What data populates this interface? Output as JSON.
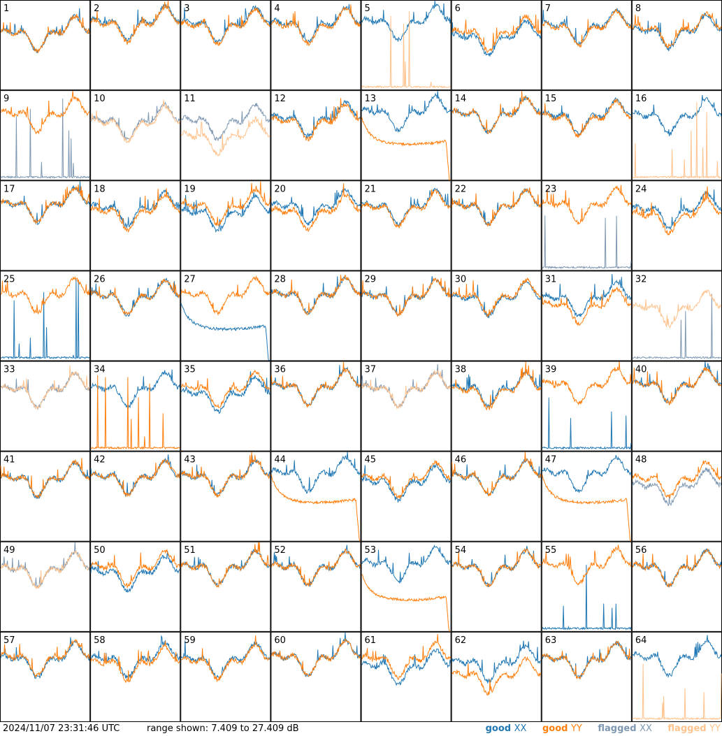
{
  "colors": {
    "good_xx": "#1f77b4",
    "good_yy": "#ff7f0e",
    "flagged_xx": "#7f98b2",
    "flagged_yy": "#ffc38e",
    "border": "#000000"
  },
  "footer": {
    "timestamp": "2024/11/07 23:31:46 UTC",
    "range": "range shown: 7.409 to 27.409 dB"
  },
  "legend": {
    "good": "good",
    "flagged": "flagged",
    "xx": "XX",
    "yy": "YY"
  },
  "chart_data": {
    "type": "line",
    "layout": "grid 8x8 of per-antenna spectra",
    "ylim": [
      7.409,
      27.409
    ],
    "yunits": "dB",
    "panels": [
      {
        "label": "1",
        "xx": "good",
        "yy": "good",
        "xx_level": 0.6,
        "yy_level": 0.6,
        "xx_shape": "gen",
        "yy_shape": "gen"
      },
      {
        "label": "2",
        "xx": "good",
        "yy": "good",
        "xx_level": 0.72,
        "yy_level": 0.7,
        "xx_shape": "gen",
        "yy_shape": "gen"
      },
      {
        "label": "3",
        "xx": "good",
        "yy": "good",
        "xx_level": 0.7,
        "yy_level": 0.68,
        "xx_shape": "gen",
        "yy_shape": "gen"
      },
      {
        "label": "4",
        "xx": "good",
        "yy": "good",
        "xx_level": 0.7,
        "yy_level": 0.68,
        "xx_shape": "gen",
        "yy_shape": "gen"
      },
      {
        "label": "5",
        "xx": "good",
        "yy": "flagged",
        "xx_level": 0.72,
        "yy_level": 0.0,
        "xx_shape": "gen",
        "yy_shape": "spikes"
      },
      {
        "label": "6",
        "xx": "good",
        "yy": "good",
        "xx_level": 0.55,
        "yy_level": 0.6,
        "xx_shape": "gen",
        "yy_shape": "gen"
      },
      {
        "label": "7",
        "xx": "good",
        "yy": "good",
        "xx_level": 0.68,
        "yy_level": 0.66,
        "xx_shape": "gen",
        "yy_shape": "gen"
      },
      {
        "label": "8",
        "xx": "good",
        "yy": "good",
        "xx_level": 0.62,
        "yy_level": 0.64,
        "xx_shape": "gen",
        "yy_shape": "gen"
      },
      {
        "label": "9",
        "xx": "flagged",
        "yy": "good",
        "xx_level": 0.0,
        "yy_level": 0.7,
        "xx_shape": "spikes",
        "yy_shape": "gen"
      },
      {
        "label": "10",
        "xx": "flagged",
        "yy": "flagged",
        "xx_level": 0.62,
        "yy_level": 0.6,
        "xx_shape": "gen",
        "yy_shape": "gen"
      },
      {
        "label": "11",
        "xx": "flagged",
        "yy": "flagged",
        "xx_level": 0.62,
        "yy_level": 0.45,
        "xx_shape": "gen",
        "yy_shape": "gen"
      },
      {
        "label": "12",
        "xx": "good",
        "yy": "good",
        "xx_level": 0.65,
        "yy_level": 0.62,
        "xx_shape": "gen",
        "yy_shape": "gen"
      },
      {
        "label": "13",
        "xx": "good",
        "yy": "good",
        "xx_level": 0.72,
        "yy_level": 0.45,
        "xx_shape": "gen",
        "yy_shape": "decay"
      },
      {
        "label": "14",
        "xx": "good",
        "yy": "good",
        "xx_level": 0.7,
        "yy_level": 0.7,
        "xx_shape": "gen",
        "yy_shape": "gen"
      },
      {
        "label": "15",
        "xx": "good",
        "yy": "good",
        "xx_level": 0.68,
        "yy_level": 0.66,
        "xx_shape": "gen",
        "yy_shape": "gen"
      },
      {
        "label": "16",
        "xx": "good",
        "yy": "flagged",
        "xx_level": 0.68,
        "yy_level": 0.0,
        "xx_shape": "gen",
        "yy_shape": "spikes"
      },
      {
        "label": "17",
        "xx": "good",
        "yy": "good",
        "xx_level": 0.7,
        "yy_level": 0.7,
        "xx_shape": "gen",
        "yy_shape": "gen"
      },
      {
        "label": "18",
        "xx": "good",
        "yy": "good",
        "xx_level": 0.66,
        "yy_level": 0.62,
        "xx_shape": "gen",
        "yy_shape": "gen"
      },
      {
        "label": "19",
        "xx": "good",
        "yy": "good",
        "xx_level": 0.6,
        "yy_level": 0.68,
        "xx_shape": "gen",
        "yy_shape": "gen"
      },
      {
        "label": "20",
        "xx": "good",
        "yy": "good",
        "xx_level": 0.68,
        "yy_level": 0.62,
        "xx_shape": "gen",
        "yy_shape": "gen"
      },
      {
        "label": "21",
        "xx": "good",
        "yy": "good",
        "xx_level": 0.68,
        "yy_level": 0.66,
        "xx_shape": "gen",
        "yy_shape": "gen"
      },
      {
        "label": "22",
        "xx": "good",
        "yy": "good",
        "xx_level": 0.68,
        "yy_level": 0.68,
        "xx_shape": "gen",
        "yy_shape": "gen"
      },
      {
        "label": "23",
        "xx": "flagged",
        "yy": "good",
        "xx_level": 0.0,
        "yy_level": 0.7,
        "xx_shape": "spikes",
        "yy_shape": "gen"
      },
      {
        "label": "24",
        "xx": "good",
        "yy": "good",
        "xx_level": 0.64,
        "yy_level": 0.58,
        "xx_shape": "gen",
        "yy_shape": "gen"
      },
      {
        "label": "25",
        "xx": "good",
        "yy": "good",
        "xx_level": 0.0,
        "yy_level": 0.7,
        "xx_shape": "spikes",
        "yy_shape": "gen"
      },
      {
        "label": "26",
        "xx": "good",
        "yy": "good",
        "xx_level": 0.68,
        "yy_level": 0.68,
        "xx_shape": "gen",
        "yy_shape": "gen"
      },
      {
        "label": "27",
        "xx": "good",
        "yy": "good",
        "xx_level": 0.4,
        "yy_level": 0.7,
        "xx_shape": "decay",
        "yy_shape": "gen"
      },
      {
        "label": "28",
        "xx": "good",
        "yy": "good",
        "xx_level": 0.7,
        "yy_level": 0.7,
        "xx_shape": "gen",
        "yy_shape": "gen"
      },
      {
        "label": "29",
        "xx": "good",
        "yy": "good",
        "xx_level": 0.68,
        "yy_level": 0.68,
        "xx_shape": "gen",
        "yy_shape": "gen"
      },
      {
        "label": "30",
        "xx": "good",
        "yy": "good",
        "xx_level": 0.66,
        "yy_level": 0.68,
        "xx_shape": "gen",
        "yy_shape": "gen"
      },
      {
        "label": "31",
        "xx": "good",
        "yy": "good",
        "xx_level": 0.66,
        "yy_level": 0.58,
        "xx_shape": "gen",
        "yy_shape": "gen"
      },
      {
        "label": "32",
        "xx": "flagged",
        "yy": "flagged",
        "xx_level": 0.0,
        "yy_level": 0.55,
        "xx_shape": "spikes",
        "yy_shape": "gen"
      },
      {
        "label": "33",
        "xx": "flagged",
        "yy": "flagged",
        "xx_level": 0.65,
        "yy_level": 0.65,
        "xx_shape": "gen",
        "yy_shape": "gen"
      },
      {
        "label": "34",
        "xx": "good",
        "yy": "good",
        "xx_level": 0.66,
        "yy_level": 0.0,
        "xx_shape": "gen",
        "yy_shape": "spikes"
      },
      {
        "label": "35",
        "xx": "good",
        "yy": "good",
        "xx_level": 0.6,
        "yy_level": 0.66,
        "xx_shape": "gen",
        "yy_shape": "gen"
      },
      {
        "label": "36",
        "xx": "good",
        "yy": "good",
        "xx_level": 0.68,
        "yy_level": 0.68,
        "xx_shape": "gen",
        "yy_shape": "gen"
      },
      {
        "label": "37",
        "xx": "flagged",
        "yy": "flagged",
        "xx_level": 0.66,
        "yy_level": 0.66,
        "xx_shape": "gen",
        "yy_shape": "gen"
      },
      {
        "label": "38",
        "xx": "good",
        "yy": "good",
        "xx_level": 0.66,
        "yy_level": 0.64,
        "xx_shape": "gen",
        "yy_shape": "gen"
      },
      {
        "label": "39",
        "xx": "good",
        "yy": "good",
        "xx_level": 0.0,
        "yy_level": 0.7,
        "xx_shape": "spikes",
        "yy_shape": "gen"
      },
      {
        "label": "40",
        "xx": "good",
        "yy": "good",
        "xx_level": 0.7,
        "yy_level": 0.7,
        "xx_shape": "gen",
        "yy_shape": "gen"
      },
      {
        "label": "41",
        "xx": "good",
        "yy": "good",
        "xx_level": 0.66,
        "yy_level": 0.66,
        "xx_shape": "gen",
        "yy_shape": "gen"
      },
      {
        "label": "42",
        "xx": "good",
        "yy": "good",
        "xx_level": 0.68,
        "yy_level": 0.68,
        "xx_shape": "gen",
        "yy_shape": "gen"
      },
      {
        "label": "43",
        "xx": "good",
        "yy": "good",
        "xx_level": 0.68,
        "yy_level": 0.68,
        "xx_shape": "gen",
        "yy_shape": "gen"
      },
      {
        "label": "44",
        "xx": "good",
        "yy": "good",
        "xx_level": 0.72,
        "yy_level": 0.48,
        "xx_shape": "gen",
        "yy_shape": "decay"
      },
      {
        "label": "45",
        "xx": "good",
        "yy": "good",
        "xx_level": 0.62,
        "yy_level": 0.66,
        "xx_shape": "gen",
        "yy_shape": "gen"
      },
      {
        "label": "46",
        "xx": "good",
        "yy": "good",
        "xx_level": 0.68,
        "yy_level": 0.68,
        "xx_shape": "gen",
        "yy_shape": "gen"
      },
      {
        "label": "47",
        "xx": "good",
        "yy": "good",
        "xx_level": 0.72,
        "yy_level": 0.48,
        "xx_shape": "gen",
        "yy_shape": "decay"
      },
      {
        "label": "48",
        "xx": "flagged",
        "yy": "good",
        "xx_level": 0.58,
        "yy_level": 0.66,
        "xx_shape": "gen",
        "yy_shape": "gen"
      },
      {
        "label": "49",
        "xx": "flagged",
        "yy": "flagged",
        "xx_level": 0.66,
        "yy_level": 0.66,
        "xx_shape": "gen",
        "yy_shape": "gen"
      },
      {
        "label": "50",
        "xx": "good",
        "yy": "good",
        "xx_level": 0.62,
        "yy_level": 0.68,
        "xx_shape": "gen",
        "yy_shape": "gen"
      },
      {
        "label": "51",
        "xx": "good",
        "yy": "good",
        "xx_level": 0.68,
        "yy_level": 0.68,
        "xx_shape": "gen",
        "yy_shape": "gen"
      },
      {
        "label": "52",
        "xx": "good",
        "yy": "good",
        "xx_level": 0.68,
        "yy_level": 0.68,
        "xx_shape": "gen",
        "yy_shape": "gen"
      },
      {
        "label": "53",
        "xx": "good",
        "yy": "good",
        "xx_level": 0.72,
        "yy_level": 0.4,
        "xx_shape": "gen",
        "yy_shape": "decay"
      },
      {
        "label": "54",
        "xx": "good",
        "yy": "good",
        "xx_level": 0.68,
        "yy_level": 0.68,
        "xx_shape": "gen",
        "yy_shape": "gen"
      },
      {
        "label": "55",
        "xx": "good",
        "yy": "good",
        "xx_level": 0.0,
        "yy_level": 0.7,
        "xx_shape": "spikes",
        "yy_shape": "gen"
      },
      {
        "label": "56",
        "xx": "good",
        "yy": "good",
        "xx_level": 0.68,
        "yy_level": 0.68,
        "xx_shape": "gen",
        "yy_shape": "gen"
      },
      {
        "label": "57",
        "xx": "good",
        "yy": "good",
        "xx_level": 0.66,
        "yy_level": 0.68,
        "xx_shape": "gen",
        "yy_shape": "gen"
      },
      {
        "label": "58",
        "xx": "good",
        "yy": "good",
        "xx_level": 0.66,
        "yy_level": 0.62,
        "xx_shape": "gen",
        "yy_shape": "gen"
      },
      {
        "label": "59",
        "xx": "good",
        "yy": "good",
        "xx_level": 0.66,
        "yy_level": 0.64,
        "xx_shape": "gen",
        "yy_shape": "gen"
      },
      {
        "label": "60",
        "xx": "good",
        "yy": "good",
        "xx_level": 0.68,
        "yy_level": 0.68,
        "xx_shape": "gen",
        "yy_shape": "gen"
      },
      {
        "label": "61",
        "xx": "good",
        "yy": "good",
        "xx_level": 0.58,
        "yy_level": 0.66,
        "xx_shape": "gen",
        "yy_shape": "gen"
      },
      {
        "label": "62",
        "xx": "good",
        "yy": "good",
        "xx_level": 0.62,
        "yy_level": 0.48,
        "xx_shape": "gen",
        "yy_shape": "gen"
      },
      {
        "label": "63",
        "xx": "good",
        "yy": "good",
        "xx_level": 0.66,
        "yy_level": 0.66,
        "xx_shape": "gen",
        "yy_shape": "gen"
      },
      {
        "label": "64",
        "xx": "good",
        "yy": "flagged",
        "xx_level": 0.68,
        "yy_level": 0.0,
        "xx_shape": "gen",
        "yy_shape": "spikes"
      }
    ]
  }
}
